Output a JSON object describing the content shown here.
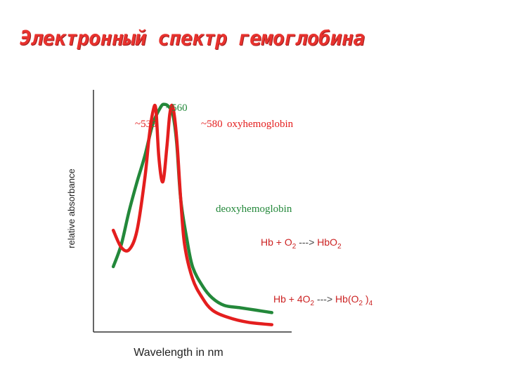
{
  "slide": {
    "title": "Электронный спектр гемоглобина"
  },
  "chart_data": {
    "type": "line",
    "xlabel": "Wavelength in nm",
    "ylabel": "relative absorbance",
    "grid": false,
    "colors": {
      "oxy": "#e41e1e",
      "deoxy": "#23883a",
      "axis": "#333333",
      "eq_text": "#cc2222",
      "eq_text2": "#555555"
    },
    "annotations": {
      "peak_535": "~535",
      "peak_560": "~560",
      "peak_580": "~580",
      "oxy_label": "oxyhemoglobin",
      "deoxy_label": "deoxyhemoglobin"
    },
    "equations": {
      "eq1": {
        "lhs": "Hb + O",
        "lhs_sub": "2",
        "arrow": " ---> ",
        "rhs": "HbO",
        "rhs_sub": "2"
      },
      "eq2": {
        "lhs": "Hb + 4O",
        "lhs_sub": "2",
        "arrow": " ---> ",
        "rhs": "Hb(O",
        "rhs_sub": "2",
        "rhs_close": " )",
        "rhs_close_sub": "4"
      }
    },
    "series": [
      {
        "name": "oxyhemoglobin",
        "x": [
          0.1,
          0.14,
          0.18,
          0.22,
          0.26,
          0.28,
          0.3,
          0.315,
          0.33,
          0.35,
          0.37,
          0.385,
          0.4,
          0.42,
          0.44,
          0.46,
          0.5,
          0.55,
          0.6,
          0.68,
          0.78,
          0.9
        ],
        "y": [
          0.42,
          0.35,
          0.34,
          0.42,
          0.64,
          0.8,
          0.91,
          0.92,
          0.72,
          0.62,
          0.76,
          0.9,
          0.93,
          0.8,
          0.55,
          0.36,
          0.22,
          0.14,
          0.09,
          0.06,
          0.04,
          0.03
        ]
      },
      {
        "name": "deoxyhemoglobin",
        "x": [
          0.1,
          0.14,
          0.18,
          0.22,
          0.26,
          0.3,
          0.34,
          0.36,
          0.38,
          0.4,
          0.42,
          0.44,
          0.47,
          0.5,
          0.55,
          0.6,
          0.66,
          0.74,
          0.82,
          0.9
        ],
        "y": [
          0.27,
          0.36,
          0.5,
          0.62,
          0.73,
          0.86,
          0.93,
          0.94,
          0.93,
          0.9,
          0.78,
          0.55,
          0.39,
          0.27,
          0.19,
          0.14,
          0.11,
          0.1,
          0.09,
          0.08
        ]
      }
    ]
  }
}
